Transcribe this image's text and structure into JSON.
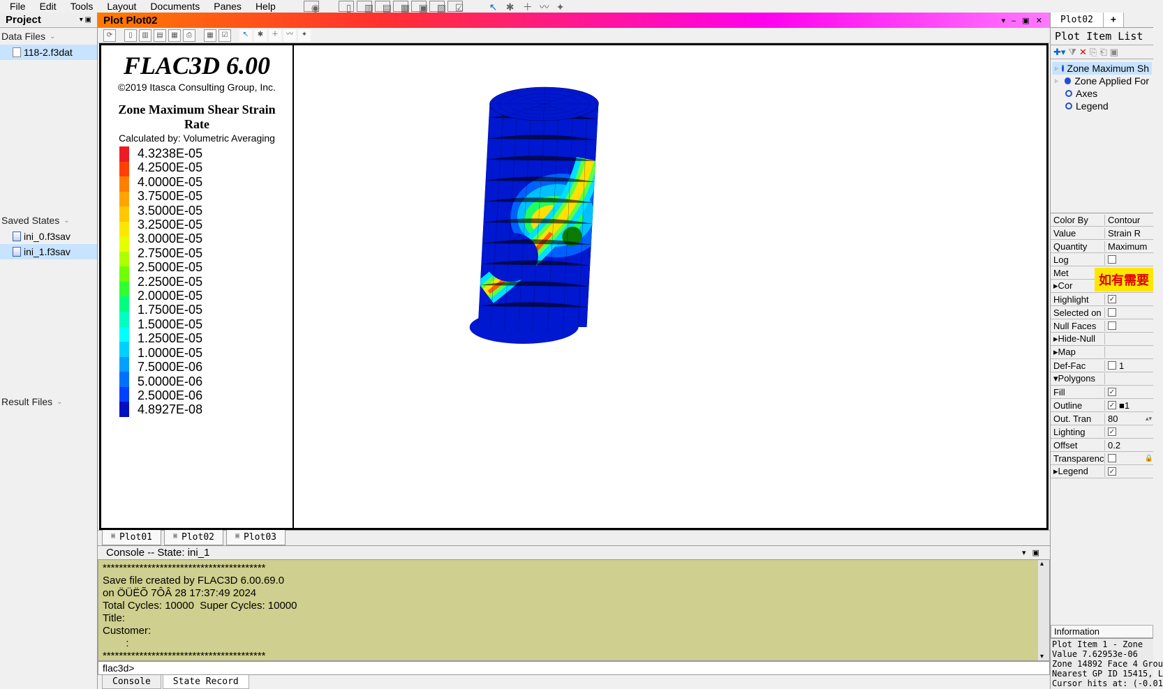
{
  "menu": {
    "items": [
      "File",
      "Edit",
      "Tools",
      "Layout",
      "Documents",
      "Panes",
      "Help"
    ]
  },
  "sidebar": {
    "project_label": "Project",
    "data_files_label": "Data Files",
    "data_files": [
      "118-2.f3dat"
    ],
    "saved_states_label": "Saved States",
    "saved_states": [
      "ini_0.f3sav",
      "ini_1.f3sav"
    ],
    "result_files_label": "Result Files"
  },
  "plot_bar_title": "Plot Plot02",
  "plot_tabs": [
    "Plot01",
    "Plot02",
    "Plot03"
  ],
  "legend": {
    "title": "FLAC3D 6.00",
    "copyright": "©2019 Itasca Consulting Group, Inc.",
    "subtitle": "Zone Maximum Shear Strain Rate",
    "calc": "Calculated by: Volumetric Averaging",
    "scale_values": [
      "4.3238E-05",
      "4.2500E-05",
      "4.0000E-05",
      "3.7500E-05",
      "3.5000E-05",
      "3.2500E-05",
      "3.0000E-05",
      "2.7500E-05",
      "2.5000E-05",
      "2.2500E-05",
      "2.0000E-05",
      "1.7500E-05",
      "1.5000E-05",
      "1.2500E-05",
      "1.0000E-05",
      "7.5000E-06",
      "5.0000E-06",
      "2.5000E-06",
      "4.8927E-08"
    ],
    "scale_colors": [
      "#ed1c24",
      "#ff4000",
      "#ff8000",
      "#ffa500",
      "#ffc800",
      "#ffe600",
      "#e5ff00",
      "#b0ff00",
      "#70ff00",
      "#30ff30",
      "#00ff80",
      "#00ffc0",
      "#00ffff",
      "#00d0ff",
      "#00a0ff",
      "#0070ff",
      "#0040ff",
      "#0010c0"
    ]
  },
  "console": {
    "header": "Console -- State: ini_1",
    "body": "****************************************\nSave file created by FLAC3D 6.00.69.0\non ÖÜËÕ 7ÔÂ 28 17:37:49 2024\nTotal Cycles: 10000  Super Cycles: 10000\nTitle:\nCustomer:\n        :\n****************************************",
    "prompt": "flac3d>"
  },
  "bottom_tabs": [
    "Console",
    "State Record"
  ],
  "right": {
    "tabs": [
      "Plot02",
      "+"
    ],
    "header": "Plot Item List",
    "tree": [
      {
        "label": "Zone Maximum Sh",
        "expand": true,
        "sel": true,
        "solid": true
      },
      {
        "label": "Zone Applied For",
        "expand": true,
        "solid": true
      },
      {
        "label": "Axes",
        "solid": false
      },
      {
        "label": "Legend",
        "solid": false
      }
    ],
    "props": [
      {
        "k": "Color By",
        "v": "Contour"
      },
      {
        "k": "Value",
        "v": "Strain R"
      },
      {
        "k": "Quantity",
        "v": "Maximum"
      },
      {
        "k": "Log",
        "chk": false
      },
      {
        "k": "Met",
        "v": ""
      },
      {
        "k": "Cor",
        "v": "",
        "expander": true
      },
      {
        "k": "Highlight",
        "chk": true
      },
      {
        "k": "Selected on",
        "chk": false
      },
      {
        "k": "Null Faces",
        "chk": false
      },
      {
        "k": "Hide-Null",
        "v": "",
        "expander": true
      },
      {
        "k": "Map",
        "v": "",
        "expander": true
      },
      {
        "k": "Def-Fac",
        "chk": false,
        "v": "1"
      },
      {
        "k": "Polygons",
        "section": true
      },
      {
        "k": "Fill",
        "chk": true,
        "indent": true
      },
      {
        "k": "Outline",
        "chk": true,
        "v": "■1",
        "indent": true
      },
      {
        "k": "Out. Tran",
        "v": "80",
        "spin": true,
        "indent": true
      },
      {
        "k": "Lighting",
        "chk": true,
        "indent": true
      },
      {
        "k": "Offset",
        "v": "0.2",
        "indent": true
      },
      {
        "k": "Transparenc",
        "chk": false,
        "lock": true
      },
      {
        "k": "Legend",
        "chk": true,
        "expander": true
      }
    ],
    "note": "如有需要",
    "info_header": "Information",
    "info": "Plot Item 1 - Zone\nValue 7.62953e-06\nZone 14892 Face 4 Grou\nNearest GP ID 15415, L\nCursor hits at: (-0.01"
  }
}
